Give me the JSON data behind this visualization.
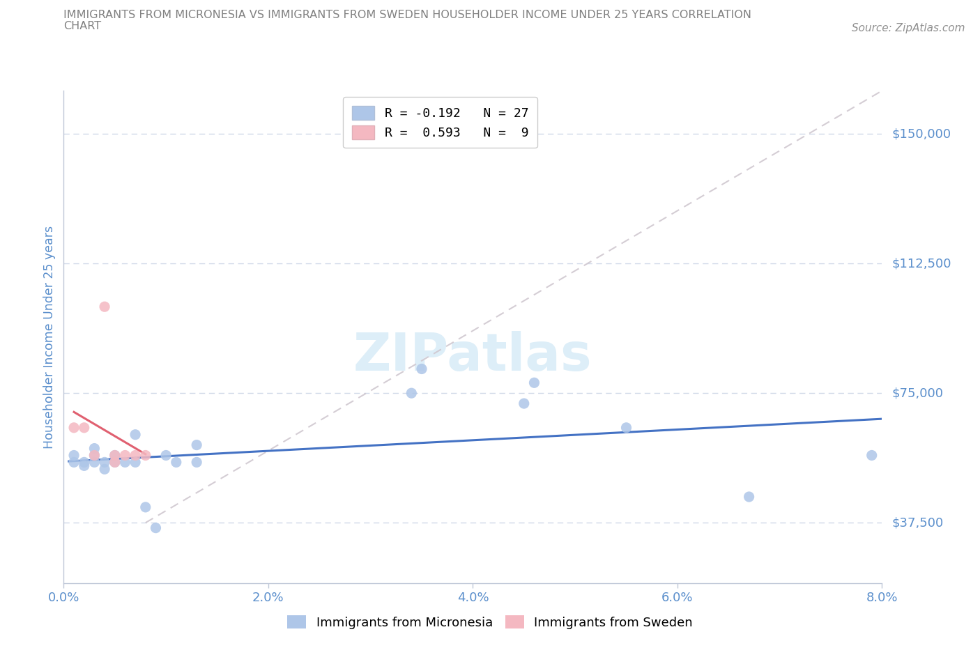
{
  "title_line1": "IMMIGRANTS FROM MICRONESIA VS IMMIGRANTS FROM SWEDEN HOUSEHOLDER INCOME UNDER 25 YEARS CORRELATION",
  "title_line2": "CHART",
  "source": "Source: ZipAtlas.com",
  "ylabel": "Householder Income Under 25 years",
  "xlim": [
    0.0,
    0.08
  ],
  "ylim": [
    20000,
    162500
  ],
  "yticks": [
    37500,
    75000,
    112500,
    150000
  ],
  "ytick_labels": [
    "$37,500",
    "$75,000",
    "$112,500",
    "$150,000"
  ],
  "xtick_labels": [
    "0.0%",
    "2.0%",
    "4.0%",
    "6.0%",
    "8.0%"
  ],
  "xticks": [
    0.0,
    0.02,
    0.04,
    0.06,
    0.08
  ],
  "micronesia_x": [
    0.001,
    0.001,
    0.002,
    0.002,
    0.003,
    0.003,
    0.003,
    0.004,
    0.004,
    0.005,
    0.005,
    0.006,
    0.007,
    0.007,
    0.008,
    0.009,
    0.01,
    0.011,
    0.013,
    0.013,
    0.034,
    0.035,
    0.045,
    0.046,
    0.055,
    0.067,
    0.079
  ],
  "micronesia_y": [
    57000,
    55000,
    54000,
    55000,
    55000,
    57000,
    59000,
    55000,
    53000,
    55000,
    57000,
    55000,
    63000,
    55000,
    42000,
    36000,
    57000,
    55000,
    60000,
    55000,
    75000,
    82000,
    72000,
    78000,
    65000,
    45000,
    57000
  ],
  "sweden_x": [
    0.001,
    0.002,
    0.003,
    0.004,
    0.005,
    0.005,
    0.006,
    0.007,
    0.008
  ],
  "sweden_y": [
    65000,
    65000,
    57000,
    100000,
    55000,
    57000,
    57000,
    57000,
    57000
  ],
  "micronesia_R": -0.192,
  "micronesia_N": 27,
  "sweden_R": 0.593,
  "sweden_N": 9,
  "micronesia_scatter_color": "#aec6e8",
  "sweden_scatter_color": "#f4b8c1",
  "trend_micronesia_color": "#4472c4",
  "trend_sweden_color": "#e06070",
  "ref_line_color": "#d0c8d0",
  "background_color": "#ffffff",
  "grid_color": "#d0d8e8",
  "axis_color": "#c0c8d8",
  "label_color": "#5b8fcc",
  "title_color": "#808080",
  "source_color": "#909090",
  "watermark_color": "#ddeef8"
}
